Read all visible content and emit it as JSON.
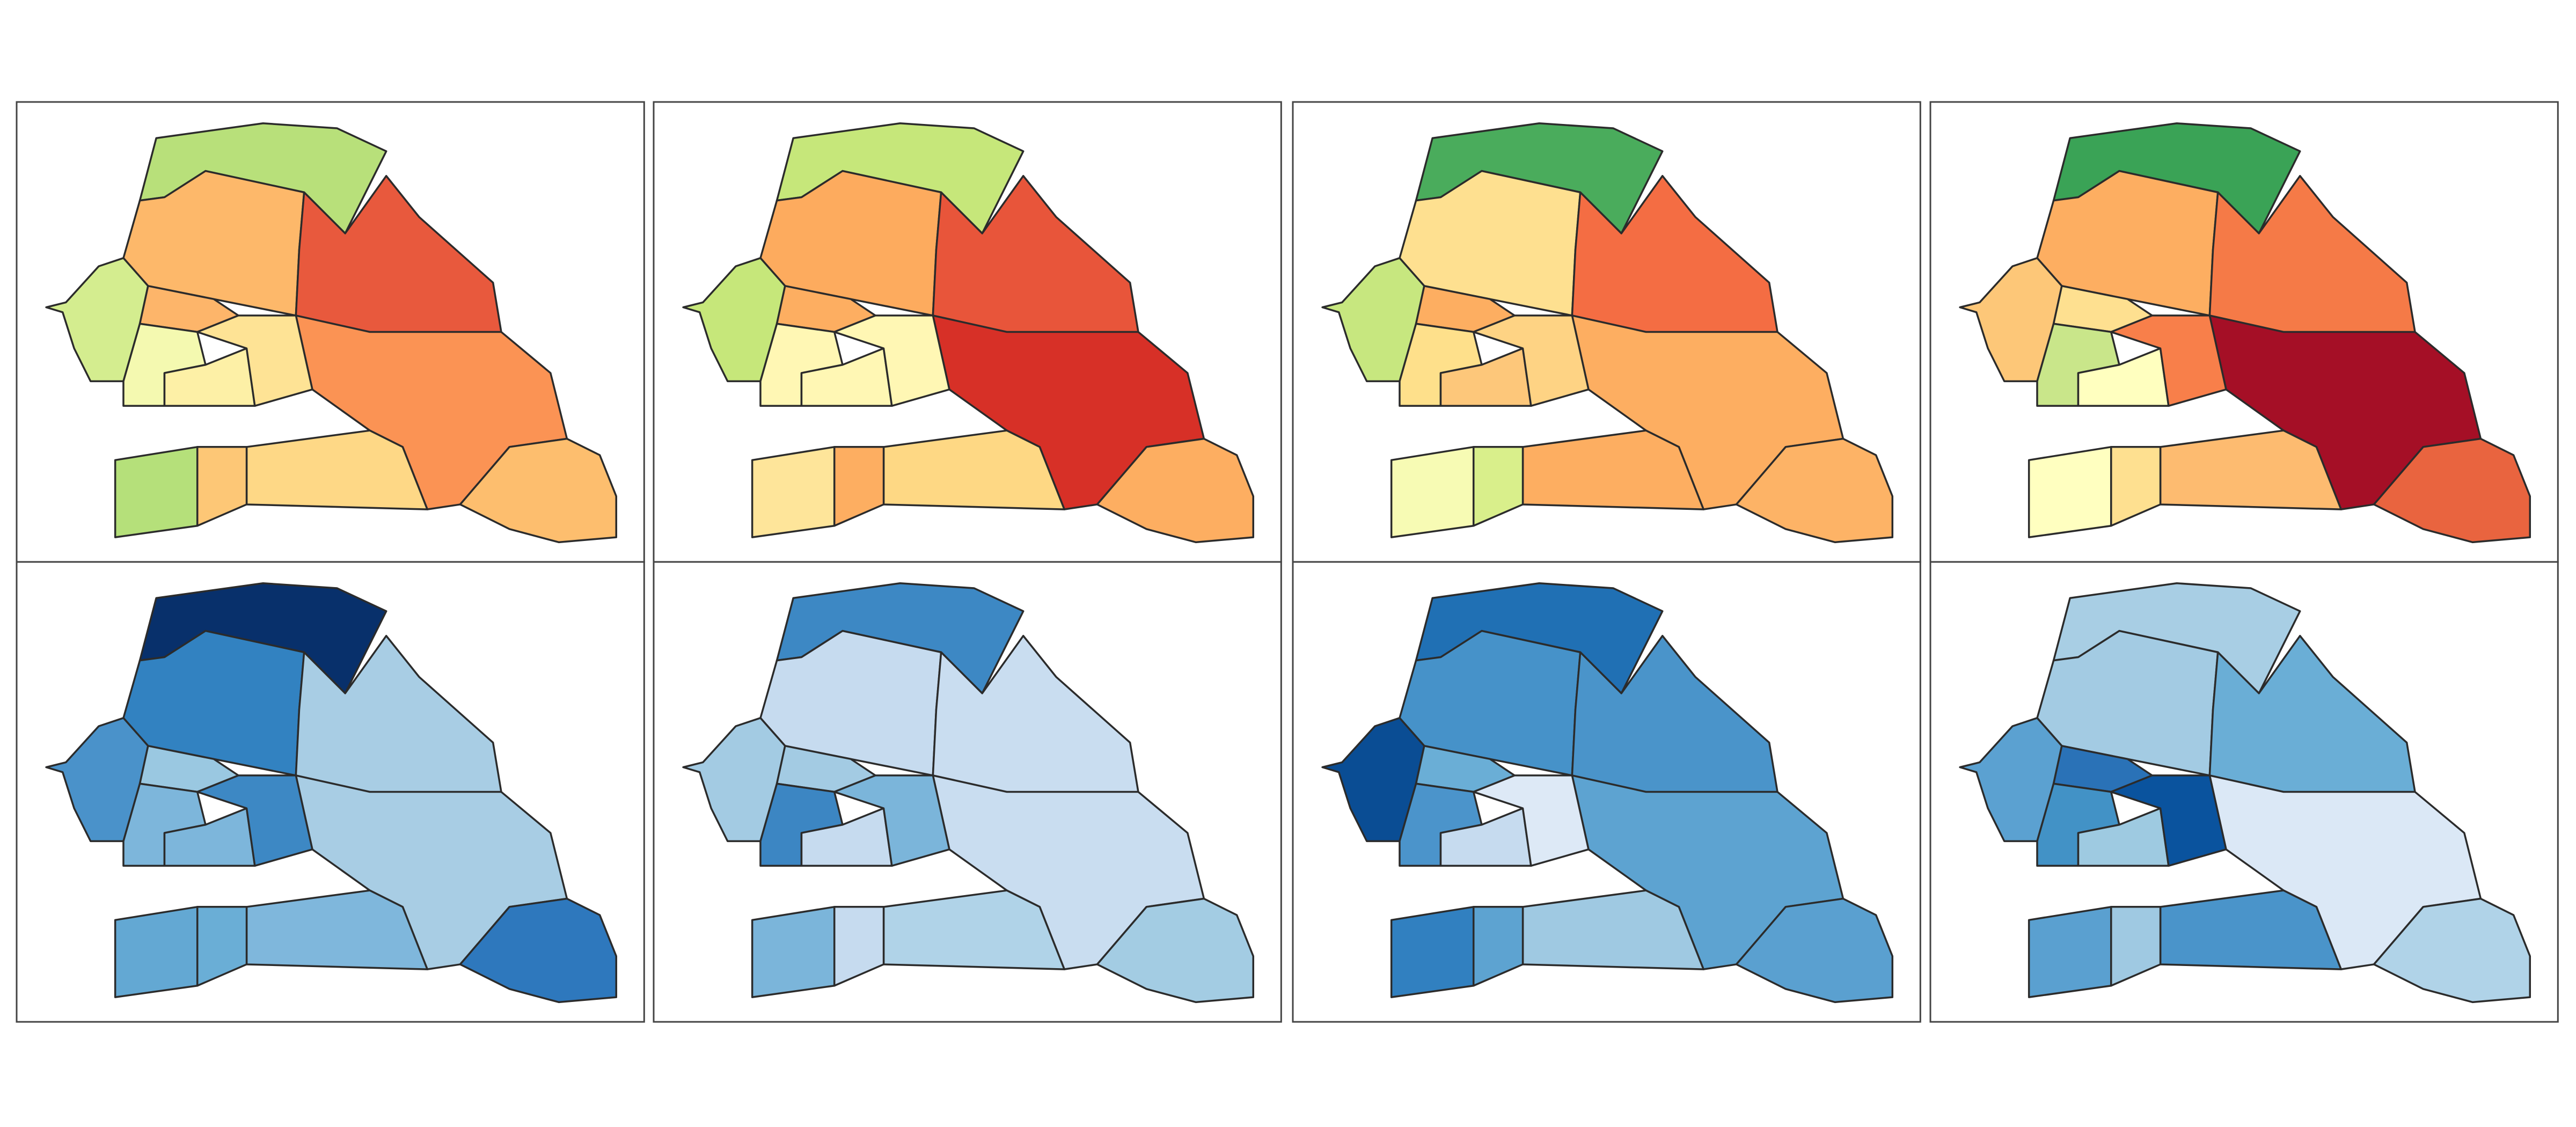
{
  "panels": [
    {
      "fills": [
        "#b8e07a",
        "#fdb86a",
        "#e8593d",
        "#fb9354",
        "#fdbe6e",
        "#fed886",
        "#fdc776",
        "#b5e07a",
        "#d4ed8f",
        "#fdb56a",
        "#f4f9b0",
        "#fdf0a6",
        "#fee395"
      ]
    },
    {
      "fills": [
        "#c6e77a",
        "#fdab5e",
        "#e8553a",
        "#d73027",
        "#fdae61",
        "#fed884",
        "#fdae61",
        "#fee59a",
        "#c6e77a",
        "#fdae61",
        "#fff7b4",
        "#fff7b4",
        "#fff7b4"
      ]
    },
    {
      "fills": [
        "#4aac5c",
        "#fee090",
        "#f46d43",
        "#fdae61",
        "#fdb366",
        "#fdae61",
        "#d9ef8b",
        "#f7fbb4",
        "#c7e77f",
        "#fdae61",
        "#fee08b",
        "#fdc77a",
        "#fed384"
      ]
    },
    {
      "fills": [
        "#3aa356",
        "#fdae61",
        "#f57a47",
        "#a50f26",
        "#e9643f",
        "#fdbb70",
        "#fee090",
        "#ffffc0",
        "#fdc778",
        "#fee090",
        "#c9e68a",
        "#ffffbf",
        "#f87f4a"
      ]
    },
    {
      "fills": [
        "#08306b",
        "#3282c1",
        "#a8cde4",
        "#a8cde4",
        "#2e78bd",
        "#7fb7dc",
        "#6aaed6",
        "#63a8d3",
        "#4a92ca",
        "#9ac8e1",
        "#7db6db",
        "#7db6db",
        "#3d88c4"
      ]
    },
    {
      "fills": [
        "#3d88c4",
        "#c6dbef",
        "#c9ddf0",
        "#c9ddf0",
        "#a3cce3",
        "#b0d3e8",
        "#c6dbef",
        "#7bb5da",
        "#a3cbe3",
        "#a3cbe3",
        "#3c86c3",
        "#c6dbef",
        "#7bb5da"
      ]
    },
    {
      "fills": [
        "#2070b4",
        "#4692c9",
        "#4a94ca",
        "#5da3d1",
        "#5aa0d0",
        "#9fc9e2",
        "#5da3d1",
        "#3180c0",
        "#0a4d94",
        "#6aaed6",
        "#4b94cb",
        "#c6dbef",
        "#dde9f6"
      ]
    },
    {
      "fills": [
        "#a8cee4",
        "#a3cbe3",
        "#6aaed6",
        "#dbe8f6",
        "#b0d3e8",
        "#4a94ca",
        "#9fc9e2",
        "#5aa0d0",
        "#5ba1d1",
        "#2a72b7",
        "#4292c6",
        "#9ecae1",
        "#0a539e"
      ]
    }
  ]
}
